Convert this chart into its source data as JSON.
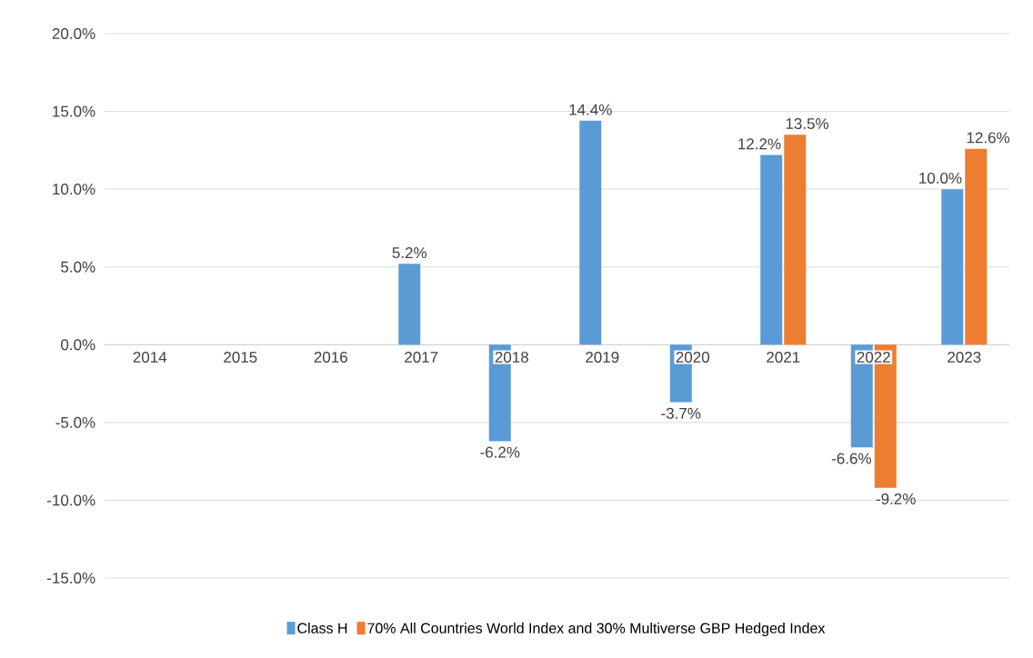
{
  "chart_data": {
    "type": "bar",
    "categories": [
      "2014",
      "2015",
      "2016",
      "2017",
      "2018",
      "2019",
      "2020",
      "2021",
      "2022",
      "2023"
    ],
    "series": [
      {
        "name": "Class H",
        "color": "#5b9bd5",
        "values": [
          null,
          null,
          null,
          5.2,
          -6.2,
          14.4,
          -3.7,
          12.2,
          -6.6,
          10.0
        ],
        "value_labels": [
          null,
          null,
          null,
          "5.2%",
          "-6.2%",
          "14.4%",
          "-3.7%",
          "12.2%",
          "-6.6%",
          "10.0%"
        ]
      },
      {
        "name": "70% All Countries World Index and 30% Multiverse GBP Hedged Index",
        "color": "#ed7d31",
        "values": [
          null,
          null,
          null,
          null,
          null,
          null,
          null,
          13.5,
          -9.2,
          12.6
        ],
        "value_labels": [
          null,
          null,
          null,
          null,
          null,
          null,
          null,
          "13.5%",
          "-9.2%",
          "12.6%"
        ]
      }
    ],
    "ylim": [
      -15,
      20
    ],
    "yticks": [
      {
        "value": -15,
        "label": "-15.0%"
      },
      {
        "value": -10,
        "label": "-10.0%"
      },
      {
        "value": -5,
        "label": "-5.0%"
      },
      {
        "value": 0,
        "label": "0.0%"
      },
      {
        "value": 5,
        "label": "5.0%"
      },
      {
        "value": 10,
        "label": "10.0%"
      },
      {
        "value": 15,
        "label": "15.0%"
      },
      {
        "value": 20,
        "label": "20.0%"
      }
    ],
    "grid": "y",
    "legend": "bottom"
  }
}
